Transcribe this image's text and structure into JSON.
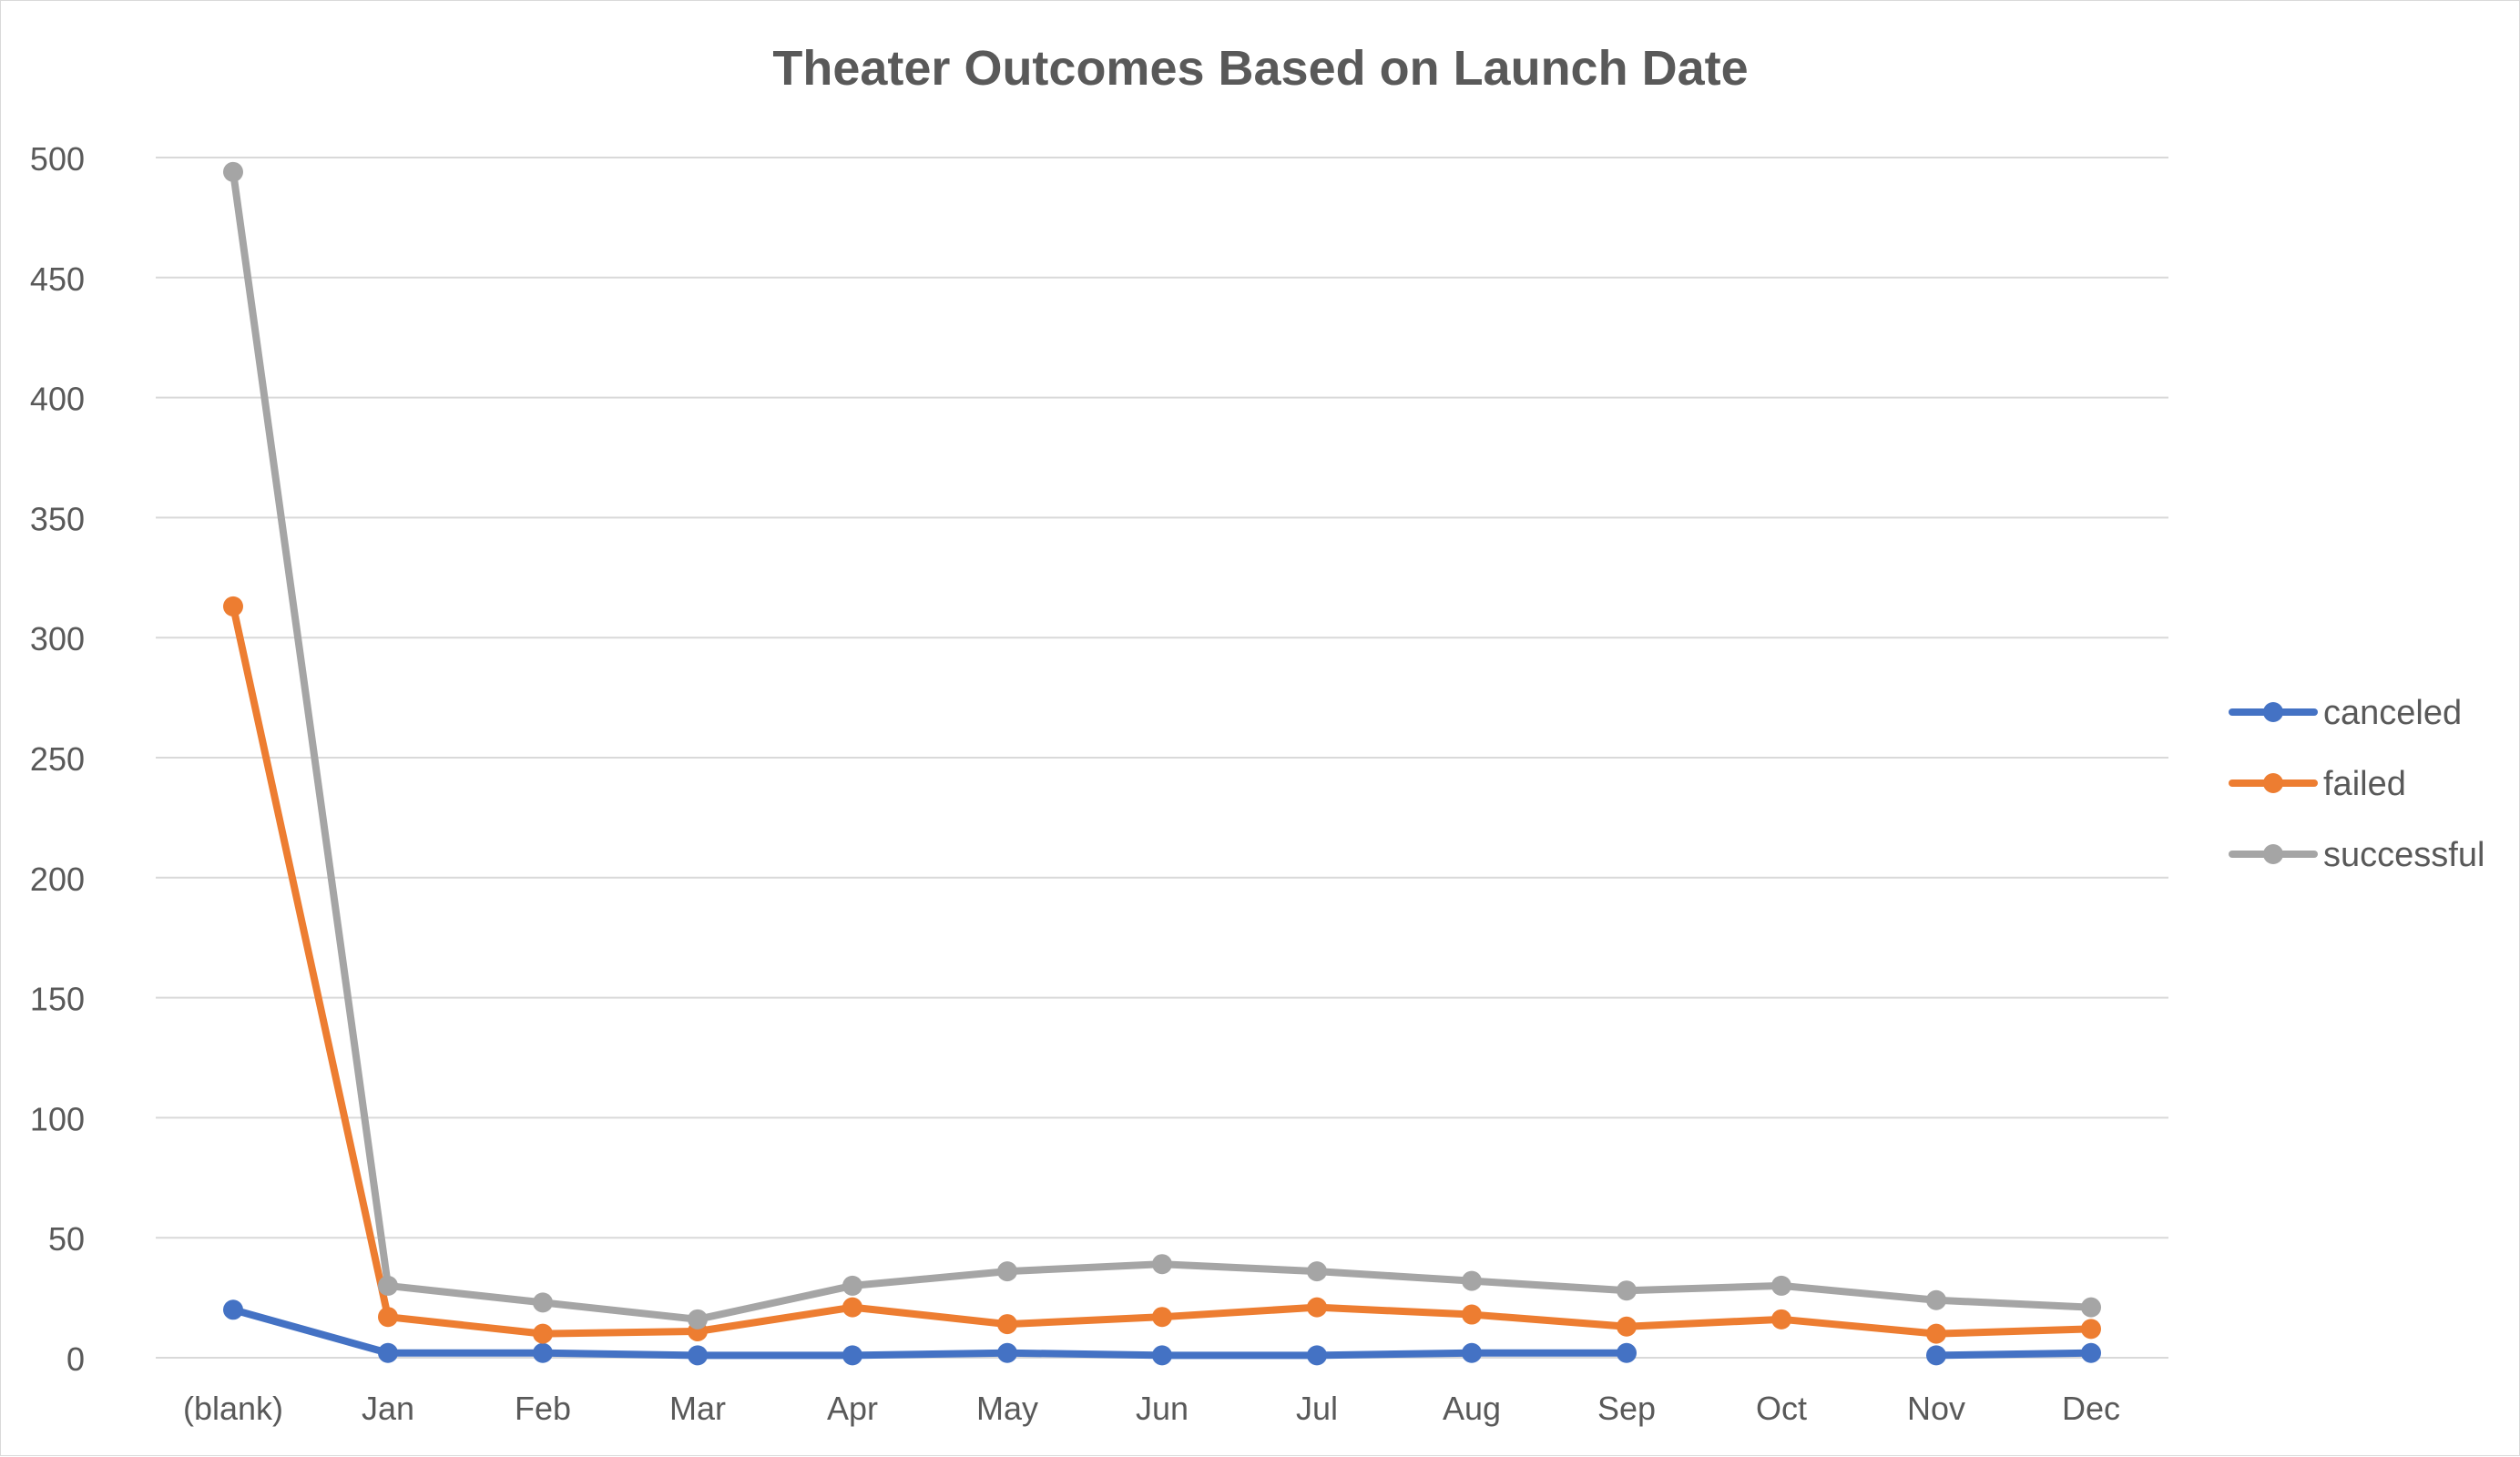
{
  "chart_data": {
    "type": "line",
    "title": "Theater Outcomes Based on Launch Date",
    "xlabel": "",
    "ylabel": "",
    "categories": [
      "(blank)",
      "Jan",
      "Feb",
      "Mar",
      "Apr",
      "May",
      "Jun",
      "Jul",
      "Aug",
      "Sep",
      "Oct",
      "Nov",
      "Dec"
    ],
    "ylim": [
      0,
      500
    ],
    "yticks": [
      "0",
      "50",
      "100",
      "150",
      "200",
      "250",
      "300",
      "350",
      "400",
      "450",
      "500"
    ],
    "grid": true,
    "legend_position": "right",
    "series": [
      {
        "name": "canceled",
        "color": "#4472C4",
        "values": [
          20,
          2,
          2,
          1,
          1,
          2,
          1,
          1,
          2,
          2,
          null,
          1,
          2
        ]
      },
      {
        "name": "failed",
        "color": "#ED7D31",
        "values": [
          313,
          17,
          10,
          11,
          21,
          14,
          17,
          21,
          18,
          13,
          16,
          10,
          12
        ]
      },
      {
        "name": "successful",
        "color": "#A5A5A5",
        "values": [
          494,
          30,
          23,
          16,
          30,
          36,
          39,
          36,
          32,
          28,
          30,
          24,
          21
        ]
      }
    ]
  }
}
